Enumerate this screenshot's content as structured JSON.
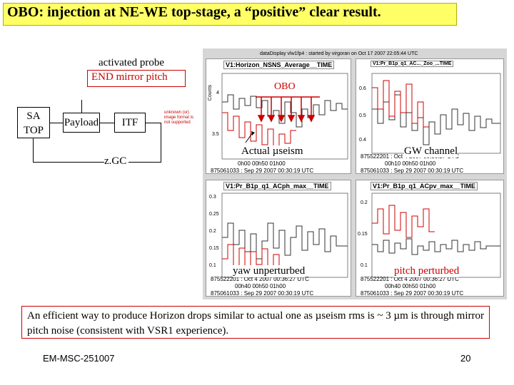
{
  "title": "OBO: injection at NE-WE top-stage, a “positive” clear result.",
  "diagram": {
    "probe_label_1": "activated probe",
    "probe_label_2": "END mirror pitch",
    "sa_top_1": "SA",
    "sa_top_2": "TOP",
    "payload": "Payload",
    "itf": "ITF",
    "zgc": "z.GC",
    "unsupported_note": "unknown (or) image format is not supported"
  },
  "plots": {
    "window_title": "dataDisplay vlw1fp4 : started by virgoran on Oct 17 2007 22:05:44 UTC",
    "top_left": {
      "title": "V1:Horizon_NSNS_Average__TIME",
      "ylabel": "Counts",
      "yticks": [
        "4",
        "3.5"
      ],
      "footer1": "0h00     00h50     01h00",
      "footer2": "875061033 : Sep 29 2007 00:30:19 UTC",
      "annotation": "Actual µseism"
    },
    "top_right": {
      "title": "V1:Pr_B1p_q1_AC..._Zoo_...TIME",
      "yticks": [
        "0.6",
        "0.5",
        "0.4"
      ],
      "footer0": "875522201 : Oct 4 2007 00:36:27 UTC",
      "footer1": "00h10     00h50     01h00",
      "footer2": "875061033 : Sep 29 2007 00:30:19 UTC",
      "annotation": "GW channel"
    },
    "bottom_left": {
      "title": "V1:Pr_B1p_q1_ACph_max__TIME",
      "yticks": [
        "0.3",
        "0.25",
        "0.2",
        "0.15",
        "0.1"
      ],
      "footer0": "875522201 : Oct 4 2007 00:36:27 UTC",
      "footer1": "00h40     00h50     01h00",
      "footer2": "875061033 : Sep 29 2007 00:30:19 UTC",
      "annotation": "yaw unperturbed"
    },
    "bottom_right": {
      "title": "V1:Pr_B1p_q1_ACpv_max__TIME",
      "yticks": [
        "0.2",
        "0.15",
        "0.1"
      ],
      "footer0": "875522201 : Oct 4 2007 00:36:27 UTC",
      "footer1": "00h40     00h50     01h00",
      "footer2": "875061033 : Sep 29 2007 00:30:19 UTC",
      "annotation": "pitch perturbed"
    },
    "obo_label": "OBO"
  },
  "summary": "An efficient way to produce Horizon drops similar to actual one as µseism rms is ~ 3 µm is through mirror pitch noise (consistent with VSR1 experience).",
  "footer": {
    "left": "EM-MSC-251007",
    "right": "20"
  },
  "colors": {
    "title_bg": "#ffff66",
    "accent_red": "#cc0000",
    "panel_gray": "#d6d6d6"
  }
}
